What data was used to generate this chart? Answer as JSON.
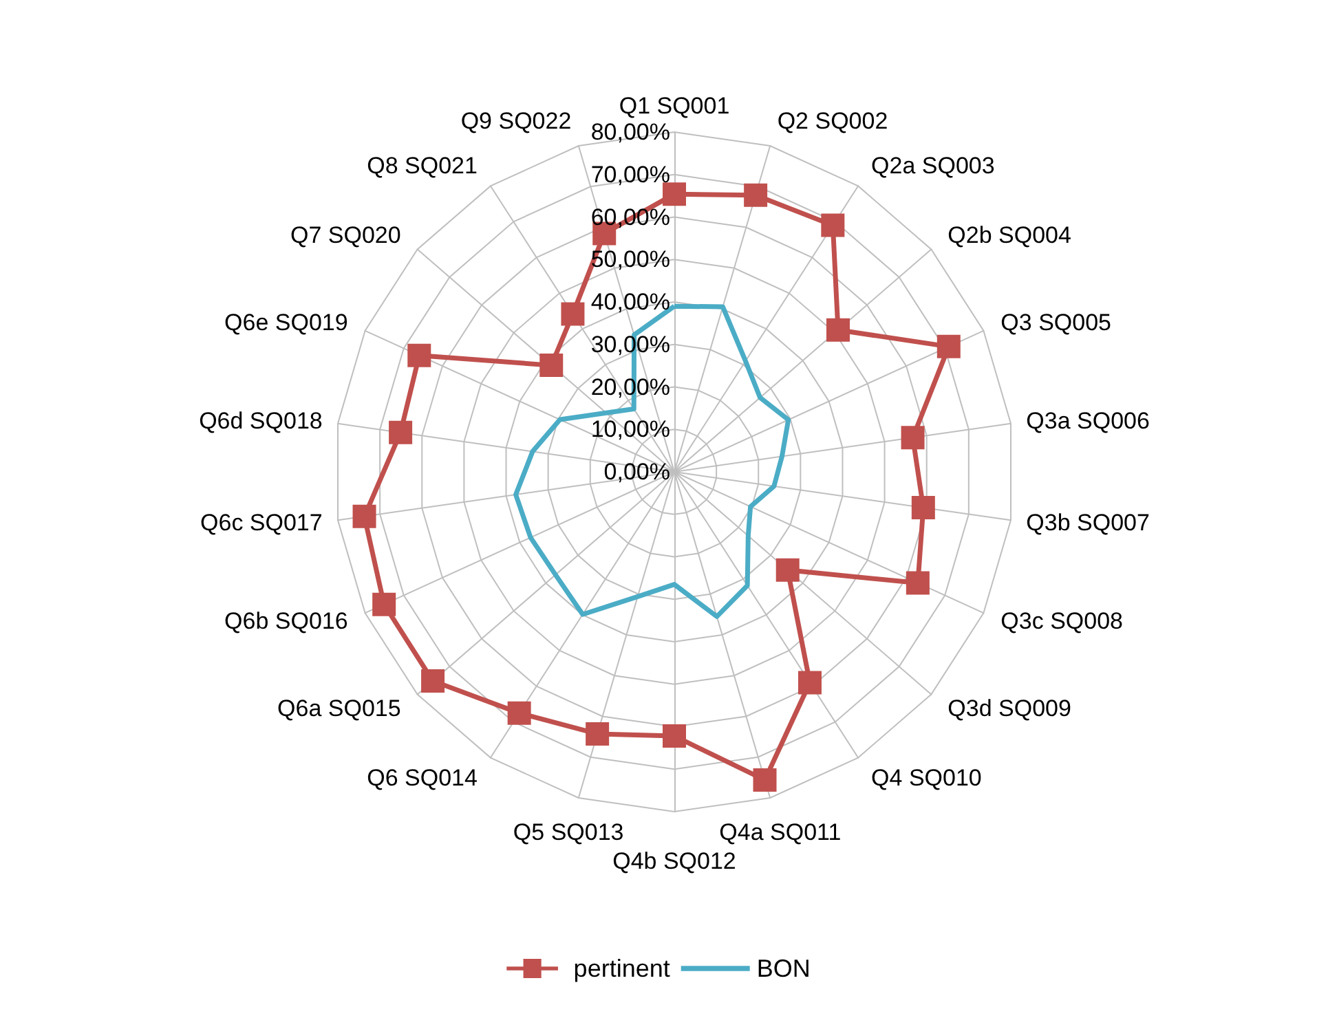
{
  "chart_data": {
    "type": "radar",
    "categories": [
      "Q1 SQ001",
      "Q2 SQ002",
      "Q2a SQ003",
      "Q2b SQ004",
      "Q3 SQ005",
      "Q3a SQ006",
      "Q3b SQ007",
      "Q3c SQ008",
      "Q3d SQ009",
      "Q4 SQ010",
      "Q4a SQ011",
      "Q4b SQ012",
      "Q5 SQ013",
      "Q6 SQ014",
      "Q6a SQ015",
      "Q6b SQ016",
      "Q6c SQ017",
      "Q6d SQ018",
      "Q6e SQ019",
      "Q7 SQ020",
      "Q8 SQ021",
      "Q9 SQ022"
    ],
    "series": [
      {
        "name": "pertinent",
        "color": "#c0504d",
        "marker": "square",
        "values": [
          65.4,
          67.9,
          69,
          51,
          71,
          56.7,
          59.2,
          63,
          35.3,
          59,
          75.6,
          62.2,
          64.3,
          67.5,
          75.2,
          75.1,
          73.7,
          65.1,
          66,
          38.3,
          44.2,
          58.5
        ]
      },
      {
        "name": "BON",
        "color": "#4bacc6",
        "marker": "none",
        "values": [
          39,
          40.5,
          31,
          26.7,
          29.5,
          25.6,
          23.7,
          19.7,
          23,
          31.8,
          35.5,
          26.5,
          30.6,
          39.9,
          37,
          37.2,
          37.7,
          33.7,
          29.6,
          21.2,
          17.6,
          33.6
        ]
      }
    ],
    "ylim": [
      0,
      80
    ],
    "yticks": [
      {
        "value": 0,
        "label": "0,00%"
      },
      {
        "value": 10,
        "label": "10,00%"
      },
      {
        "value": 20,
        "label": "20,00%"
      },
      {
        "value": 30,
        "label": "30,00%"
      },
      {
        "value": 40,
        "label": "40,00%"
      },
      {
        "value": 50,
        "label": "50,00%"
      },
      {
        "value": 60,
        "label": "60,00%"
      },
      {
        "value": 70,
        "label": "70,00%"
      },
      {
        "value": 80,
        "label": "80,00%"
      }
    ],
    "grid": true,
    "legend": "bottom"
  }
}
